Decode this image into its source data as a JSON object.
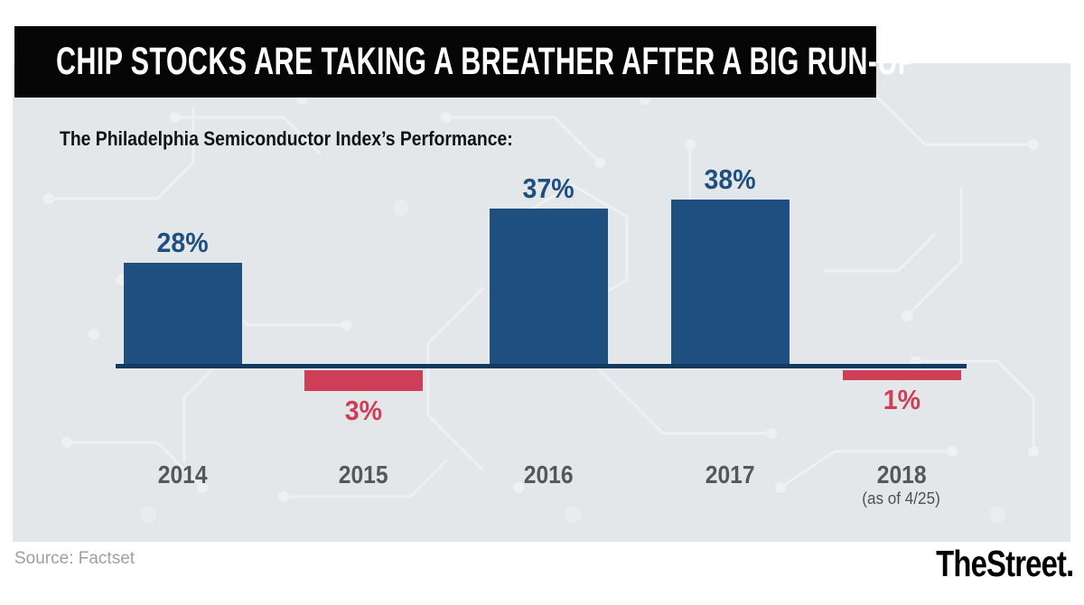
{
  "header": {
    "title": "CHIP STOCKS ARE TAKING A BREATHER AFTER A BIG RUN-UP"
  },
  "chart_data": {
    "type": "bar",
    "title": "The Philadelphia Semiconductor Index’s Performance:",
    "categories": [
      "2014",
      "2015",
      "2016",
      "2017",
      "2018"
    ],
    "values": [
      28,
      -3,
      37,
      38,
      -1
    ],
    "value_labels": [
      "28%",
      "3%",
      "37%",
      "38%",
      "1%"
    ],
    "category_notes": [
      "",
      "",
      "",
      "",
      "(as of 4/25)"
    ],
    "xlabel": "",
    "ylabel": "",
    "ylim": [
      -5,
      42
    ],
    "grid": false,
    "legend": false,
    "baseline": 0,
    "colors": {
      "positive_bar": "#1f4e80",
      "negative_bar": "#ce3e56",
      "axis_line": "#143a5f",
      "positive_label": "#1f4e80",
      "negative_label": "#ce3e56",
      "category_label": "#565758",
      "background": "#e3e7ea"
    }
  },
  "footer": {
    "source": "Source: Factset",
    "brand": "TheStreet."
  }
}
